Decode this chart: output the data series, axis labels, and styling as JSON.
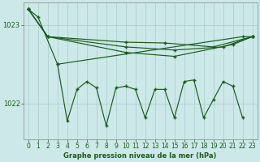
{
  "bg_color": "#cce8e8",
  "grid_color": "#aacccc",
  "line_color": "#1a5c1a",
  "xlabel": "Graphe pression niveau de la mer (hPa)",
  "hours": [
    0,
    1,
    2,
    3,
    4,
    5,
    6,
    7,
    8,
    9,
    10,
    11,
    12,
    13,
    14,
    15,
    16,
    17,
    18,
    19,
    20,
    21,
    22,
    23
  ],
  "smooth1": [
    [
      0,
      1023.2
    ],
    [
      1,
      1023.1
    ],
    [
      3,
      1022.5
    ],
    [
      22,
      1022.85
    ],
    [
      23,
      1022.85
    ]
  ],
  "smooth2": [
    [
      0,
      1023.2
    ],
    [
      2,
      1022.85
    ],
    [
      10,
      1022.65
    ],
    [
      15,
      1022.6
    ],
    [
      21,
      1022.75
    ],
    [
      23,
      1022.85
    ]
  ],
  "smooth3": [
    [
      0,
      1023.2
    ],
    [
      2,
      1022.85
    ],
    [
      10,
      1022.72
    ],
    [
      15,
      1022.68
    ],
    [
      20,
      1022.72
    ],
    [
      23,
      1022.85
    ]
  ],
  "smooth4": [
    [
      0,
      1023.2
    ],
    [
      2,
      1022.85
    ],
    [
      10,
      1022.78
    ],
    [
      14,
      1022.77
    ],
    [
      19,
      1022.72
    ],
    [
      23,
      1022.85
    ]
  ],
  "zigzag_x": [
    3,
    4,
    5,
    6,
    7,
    8,
    9,
    10,
    11,
    12,
    13,
    14,
    15,
    16,
    17,
    18,
    19,
    20,
    21,
    22
  ],
  "zigzag_y": [
    1022.5,
    1021.78,
    1022.18,
    1022.28,
    1022.2,
    1021.72,
    1022.2,
    1022.22,
    1022.18,
    1021.82,
    1022.18,
    1022.18,
    1021.82,
    1022.28,
    1022.3,
    1021.82,
    1022.05,
    1022.28,
    1022.22,
    1021.82
  ],
  "ylim": [
    1021.55,
    1023.28
  ],
  "yticks": [
    1022,
    1023
  ],
  "xticks": [
    0,
    1,
    2,
    3,
    4,
    5,
    6,
    7,
    8,
    9,
    10,
    11,
    12,
    13,
    14,
    15,
    16,
    17,
    18,
    19,
    20,
    21,
    22,
    23
  ],
  "tick_fontsize": 5.5,
  "xlabel_fontsize": 6.0
}
